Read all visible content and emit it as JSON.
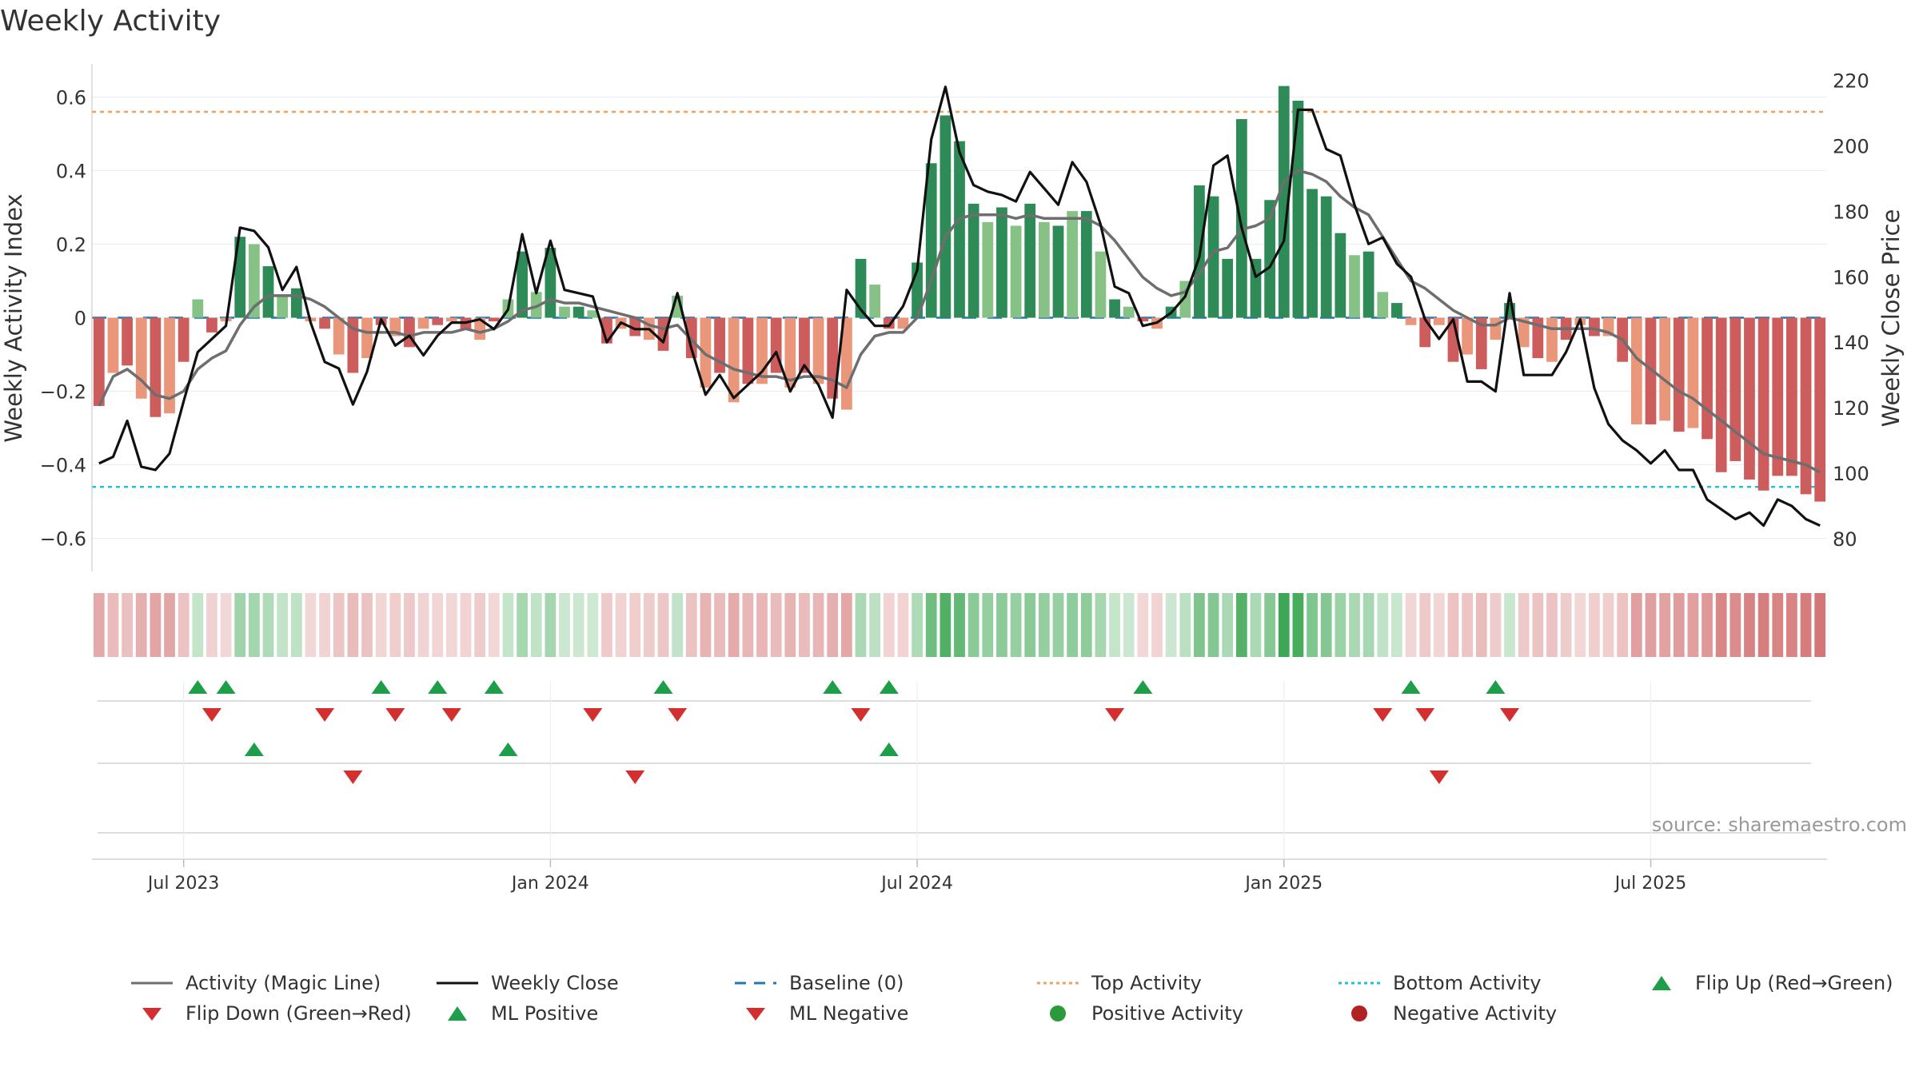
{
  "chart_data": {
    "type": "bar",
    "title": "Weekly Activity",
    "ylabel": "Weekly Activity Index",
    "y2label": "Weekly Close Price",
    "ylim": [
      -0.69,
      0.69
    ],
    "y2lim": [
      70,
      225
    ],
    "yticks": [
      "0.6",
      "0.4",
      "0.2",
      "0",
      "−0.2",
      "−0.4",
      "−0.6"
    ],
    "ytick_values": [
      0.6,
      0.4,
      0.2,
      0,
      -0.2,
      -0.4,
      -0.6
    ],
    "y2ticks": [
      "220",
      "200",
      "180",
      "160",
      "140",
      "120",
      "100",
      "80"
    ],
    "y2tick_values": [
      220,
      200,
      180,
      160,
      140,
      120,
      100,
      80
    ],
    "x_labels": [
      "Jul 2023",
      "Jan 2024",
      "Jul 2024",
      "Jan 2025",
      "Jul 2025"
    ],
    "x_label_weeks": [
      6,
      32,
      58,
      84,
      110
    ],
    "top_activity": 0.56,
    "bottom_activity": -0.46,
    "baseline": 0,
    "activity": [
      -0.24,
      -0.15,
      -0.13,
      -0.22,
      -0.27,
      -0.26,
      -0.12,
      0.05,
      -0.04,
      -0.01,
      0.22,
      0.2,
      0.14,
      0.06,
      0.08,
      -0.01,
      -0.03,
      -0.1,
      -0.15,
      -0.11,
      -0.02,
      -0.05,
      -0.08,
      -0.03,
      -0.02,
      -0.01,
      -0.03,
      -0.06,
      -0.01,
      0.05,
      0.18,
      0.07,
      0.19,
      0.03,
      0.03,
      0.02,
      -0.07,
      -0.03,
      -0.05,
      -0.06,
      -0.09,
      0.06,
      -0.11,
      -0.19,
      -0.15,
      -0.23,
      -0.18,
      -0.18,
      -0.15,
      -0.19,
      -0.15,
      -0.18,
      -0.22,
      -0.25,
      0.16,
      0.09,
      -0.03,
      -0.03,
      0.15,
      0.42,
      0.55,
      0.48,
      0.31,
      0.26,
      0.3,
      0.25,
      0.31,
      0.26,
      0.25,
      0.29,
      0.29,
      0.18,
      0.05,
      0.03,
      -0.01,
      -0.03,
      0.03,
      0.1,
      0.36,
      0.33,
      0.16,
      0.54,
      0.16,
      0.32,
      0.63,
      0.59,
      0.35,
      0.33,
      0.23,
      0.17,
      0.18,
      0.07,
      0.04,
      -0.02,
      -0.08,
      -0.02,
      -0.12,
      -0.1,
      -0.14,
      -0.06,
      0.04,
      -0.08,
      -0.11,
      -0.12,
      -0.06,
      -0.02,
      -0.05,
      -0.05,
      -0.12,
      -0.29,
      -0.29,
      -0.28,
      -0.31,
      -0.3,
      -0.33,
      -0.42,
      -0.39,
      -0.44,
      -0.47,
      -0.43,
      -0.43,
      -0.48,
      -0.5
    ],
    "magic_line": [
      -0.24,
      -0.16,
      -0.14,
      -0.17,
      -0.21,
      -0.22,
      -0.2,
      -0.14,
      -0.11,
      -0.09,
      -0.02,
      0.03,
      0.06,
      0.06,
      0.06,
      0.05,
      0.03,
      0.0,
      -0.03,
      -0.04,
      -0.04,
      -0.04,
      -0.05,
      -0.04,
      -0.04,
      -0.04,
      -0.03,
      -0.04,
      -0.03,
      -0.01,
      0.02,
      0.03,
      0.05,
      0.04,
      0.04,
      0.03,
      0.02,
      0.01,
      0.0,
      -0.02,
      -0.03,
      -0.02,
      -0.06,
      -0.1,
      -0.12,
      -0.14,
      -0.15,
      -0.16,
      -0.16,
      -0.17,
      -0.16,
      -0.16,
      -0.17,
      -0.19,
      -0.1,
      -0.05,
      -0.04,
      -0.04,
      0.0,
      0.1,
      0.22,
      0.27,
      0.28,
      0.28,
      0.28,
      0.27,
      0.28,
      0.27,
      0.27,
      0.27,
      0.27,
      0.25,
      0.21,
      0.16,
      0.11,
      0.08,
      0.06,
      0.07,
      0.12,
      0.18,
      0.19,
      0.24,
      0.25,
      0.27,
      0.37,
      0.4,
      0.39,
      0.37,
      0.33,
      0.3,
      0.28,
      0.22,
      0.16,
      0.1,
      0.08,
      0.05,
      0.02,
      0.0,
      -0.02,
      -0.02,
      0.0,
      -0.01,
      -0.02,
      -0.03,
      -0.03,
      -0.03,
      -0.03,
      -0.04,
      -0.06,
      -0.11,
      -0.14,
      -0.17,
      -0.2,
      -0.22,
      -0.25,
      -0.28,
      -0.31,
      -0.34,
      -0.37,
      -0.38,
      -0.39,
      -0.4,
      -0.42
    ],
    "weekly_close": [
      103,
      105,
      116,
      102,
      101,
      106,
      122,
      137,
      141,
      145,
      175,
      174,
      169,
      156,
      163,
      146,
      134,
      132,
      121,
      131,
      147,
      139,
      142,
      136,
      142,
      146,
      146,
      147,
      144,
      150,
      173,
      155,
      171,
      156,
      155,
      154,
      140,
      146,
      144,
      144,
      140,
      155,
      138,
      124,
      130,
      123,
      127,
      131,
      137,
      125,
      133,
      127,
      117,
      156,
      150,
      145,
      145,
      151,
      162,
      202,
      218,
      198,
      188,
      186,
      185,
      183,
      192,
      187,
      182,
      195,
      189,
      176,
      157,
      155,
      145,
      146,
      149,
      154,
      166,
      194,
      197,
      175,
      160,
      163,
      171,
      211,
      211,
      199,
      197,
      182,
      170,
      172,
      164,
      160,
      147,
      141,
      147,
      128,
      128,
      125,
      155,
      130,
      130,
      130,
      137,
      147,
      126,
      115,
      110,
      107,
      103,
      107,
      101,
      101,
      92,
      89,
      86,
      88,
      84,
      92,
      90,
      86,
      84
    ]
  },
  "lanes": {
    "flip_up_weeks": [
      7,
      9,
      20,
      24,
      28,
      40,
      52,
      56,
      74,
      93,
      99
    ],
    "flip_down_weeks": [
      8,
      16,
      21,
      25,
      35,
      41,
      54,
      72,
      91,
      94,
      100
    ],
    "ml_positive_weeks": [
      11,
      29,
      56
    ],
    "ml_negative_weeks": [
      18,
      38,
      95
    ]
  },
  "source": "source: sharemaestro.com",
  "legend": {
    "magic_line": "Activity (Magic Line)",
    "weekly_close": "Weekly Close",
    "baseline": "Baseline (0)",
    "top_activity": "Top Activity",
    "bottom_activity": "Bottom Activity",
    "flip_up": "Flip Up (Red→Green)",
    "flip_down": "Flip Down (Green→Red)",
    "ml_positive": "ML Positive",
    "ml_negative": "ML Negative",
    "positive_activity": "Positive Activity",
    "negative_activity": "Negative Activity"
  },
  "colors": {
    "pos_strong": "#2e8b57",
    "pos_light": "#86c286",
    "neg_strong": "#cd5c5c",
    "neg_light": "#e9967a",
    "magic_line": "#6e6e6e",
    "weekly_close": "#111111",
    "baseline": "#1f77b4",
    "top_activity": "#f0a060",
    "bottom_activity": "#20c0d0",
    "up_marker": "#1f9e4a",
    "down_marker": "#d32f2f",
    "pos_dot": "#2a9a3a",
    "neg_dot": "#b22222"
  }
}
